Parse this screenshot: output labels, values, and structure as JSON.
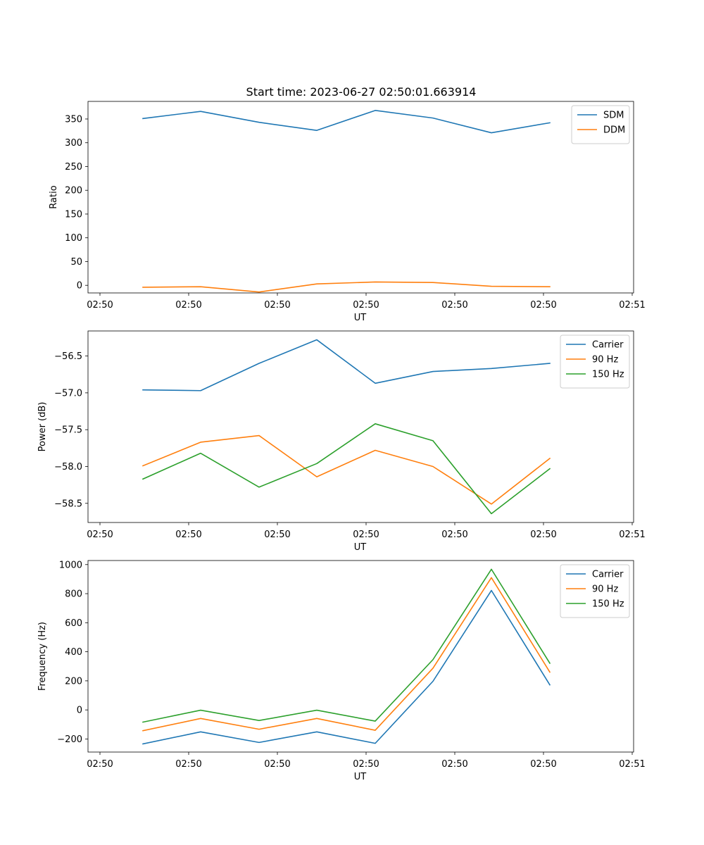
{
  "title": "Start time: 2023-06-27 02:50:01.663914",
  "chart_data": [
    {
      "type": "line",
      "title": "Start time: 2023-06-27 02:50:01.663914",
      "xlabel": "UT",
      "ylabel": "Ratio",
      "x_tick_labels": [
        "02:50",
        "02:50",
        "02:50",
        "02:50",
        "02:50",
        "02:50",
        "02:51"
      ],
      "yticks": [
        0,
        50,
        100,
        150,
        200,
        250,
        300,
        350
      ],
      "ylim": [
        -16,
        387
      ],
      "legend_position": "top-right",
      "series": [
        {
          "name": "SDM",
          "color": "#1f77b4",
          "values": [
            351,
            366,
            343,
            326,
            368,
            352,
            321,
            342
          ]
        },
        {
          "name": "DDM",
          "color": "#ff7f0e",
          "values": [
            -4,
            -3,
            -14,
            3,
            7,
            6,
            -2,
            -3
          ]
        }
      ]
    },
    {
      "type": "line",
      "xlabel": "UT",
      "ylabel": "Power (dB)",
      "x_tick_labels": [
        "02:50",
        "02:50",
        "02:50",
        "02:50",
        "02:50",
        "02:50",
        "02:51"
      ],
      "yticks": [
        -58.5,
        -58.0,
        -57.5,
        -57.0,
        -56.5
      ],
      "ytick_labels": [
        "−58.5",
        "−58.0",
        "−57.5",
        "−57.0",
        "−56.5"
      ],
      "ylim": [
        -58.76,
        -56.16
      ],
      "legend_position": "top-right",
      "series": [
        {
          "name": "Carrier",
          "color": "#1f77b4",
          "values": [
            -56.96,
            -56.97,
            -56.6,
            -56.28,
            -56.87,
            -56.71,
            -56.67,
            -56.6
          ]
        },
        {
          "name": "90 Hz",
          "color": "#ff7f0e",
          "values": [
            -57.99,
            -57.67,
            -57.58,
            -58.14,
            -57.78,
            -58.0,
            -58.51,
            -57.89
          ]
        },
        {
          "name": "150 Hz",
          "color": "#2ca02c",
          "values": [
            -58.17,
            -57.82,
            -58.28,
            -57.96,
            -57.42,
            -57.65,
            -58.64,
            -58.03
          ]
        }
      ]
    },
    {
      "type": "line",
      "xlabel": "UT",
      "ylabel": "Frequency (Hz)",
      "x_tick_labels": [
        "02:50",
        "02:50",
        "02:50",
        "02:50",
        "02:50",
        "02:50",
        "02:51"
      ],
      "yticks": [
        -200,
        0,
        200,
        400,
        600,
        800,
        1000
      ],
      "ytick_labels": [
        "−200",
        "0",
        "200",
        "400",
        "600",
        "800",
        "1000"
      ],
      "ylim": [
        -290,
        1028
      ],
      "legend_position": "top-right",
      "series": [
        {
          "name": "Carrier",
          "color": "#1f77b4",
          "values": [
            -234,
            -151,
            -224,
            -151,
            -230,
            197,
            822,
            172
          ]
        },
        {
          "name": "90 Hz",
          "color": "#ff7f0e",
          "values": [
            -143,
            -59,
            -133,
            -59,
            -140,
            287,
            910,
            260
          ]
        },
        {
          "name": "150 Hz",
          "color": "#2ca02c",
          "values": [
            -84,
            -2,
            -73,
            -2,
            -77,
            346,
            968,
            321
          ]
        }
      ]
    }
  ]
}
